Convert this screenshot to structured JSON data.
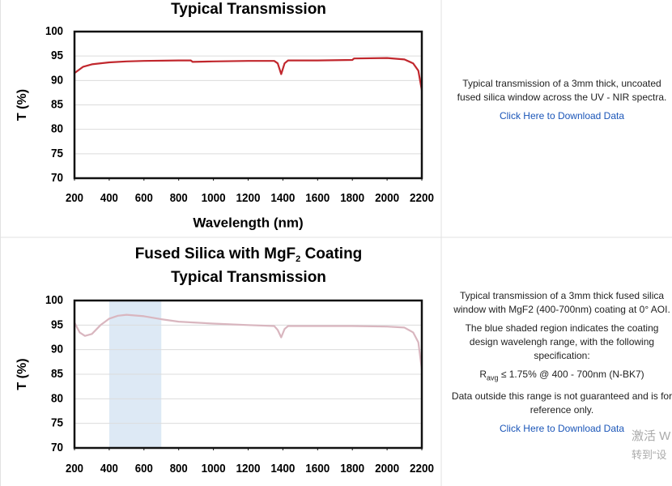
{
  "chart_data": [
    {
      "type": "line",
      "title": "Typical Transmission",
      "xlabel": "Wavelength (nm)",
      "ylabel": "T (%)",
      "x": [
        200,
        250,
        300,
        400,
        500,
        600,
        800,
        870,
        880,
        1000,
        1200,
        1350,
        1370,
        1390,
        1410,
        1430,
        1600,
        1800,
        1810,
        2000,
        2100,
        2150,
        2180,
        2200
      ],
      "series": [
        {
          "color": "#c1272d",
          "values": [
            91.5,
            92.8,
            93.3,
            93.7,
            93.9,
            94.0,
            94.1,
            94.1,
            93.8,
            93.9,
            94.0,
            94.0,
            93.5,
            91.3,
            93.5,
            94.1,
            94.1,
            94.2,
            94.5,
            94.6,
            94.3,
            93.5,
            92.0,
            88.0
          ]
        }
      ],
      "xlim": [
        200,
        2200
      ],
      "xticks": [
        200,
        400,
        600,
        800,
        1000,
        1200,
        1400,
        1600,
        1800,
        2000,
        2200
      ],
      "ylim": [
        70,
        100
      ],
      "yticks": [
        70,
        75,
        80,
        85,
        90,
        95,
        100
      ],
      "grid": true
    },
    {
      "type": "line",
      "title": "Fused Silica with MgF",
      "title_sub": "2",
      "title_after": " Coating",
      "subtitle": "Typical Transmission",
      "ylabel": "T (%)",
      "x": [
        200,
        230,
        260,
        300,
        350,
        400,
        450,
        500,
        600,
        700,
        800,
        1000,
        1200,
        1350,
        1370,
        1390,
        1410,
        1430,
        1600,
        1800,
        2000,
        2100,
        2150,
        2180,
        2200
      ],
      "series": [
        {
          "color": "#d9b6bf",
          "values": [
            95.5,
            93.5,
            92.8,
            93.2,
            95.0,
            96.3,
            96.9,
            97.1,
            96.8,
            96.2,
            95.7,
            95.3,
            95.0,
            94.8,
            94.0,
            92.5,
            94.2,
            94.8,
            94.8,
            94.8,
            94.7,
            94.5,
            93.5,
            91.5,
            86.0
          ]
        }
      ],
      "shaded_region": [
        400,
        700
      ],
      "shaded_color": "#dde9f5",
      "xlim": [
        200,
        2200
      ],
      "xticks": [
        200,
        400,
        600,
        800,
        1000,
        1200,
        1400,
        1600,
        1800,
        2000,
        2200
      ],
      "ylim": [
        70,
        100
      ],
      "yticks": [
        70,
        75,
        80,
        85,
        90,
        95,
        100
      ],
      "grid": true
    }
  ],
  "descriptions": [
    {
      "text": "Typical transmission of a 3mm thick, uncoated fused silica window across the UV - NIR spectra.",
      "link": "Click Here to Download Data"
    },
    {
      "text": "Typical transmission of a 3mm thick fused silica window with MgF2 (400-700nm) coating at 0° AOI.",
      "text2": "The blue shaded region indicates the coating design wavelengh range, with the following specification:",
      "spec": "R",
      "spec_sub": "avg",
      "spec_after": " ≤ 1.75% @ 400 - 700nm (N-BK7)",
      "text3": "Data outside this range is not guaranteed and is for reference only.",
      "link": "Click Here to Download Data"
    }
  ],
  "watermark": [
    "激活 W",
    "转到“设"
  ]
}
